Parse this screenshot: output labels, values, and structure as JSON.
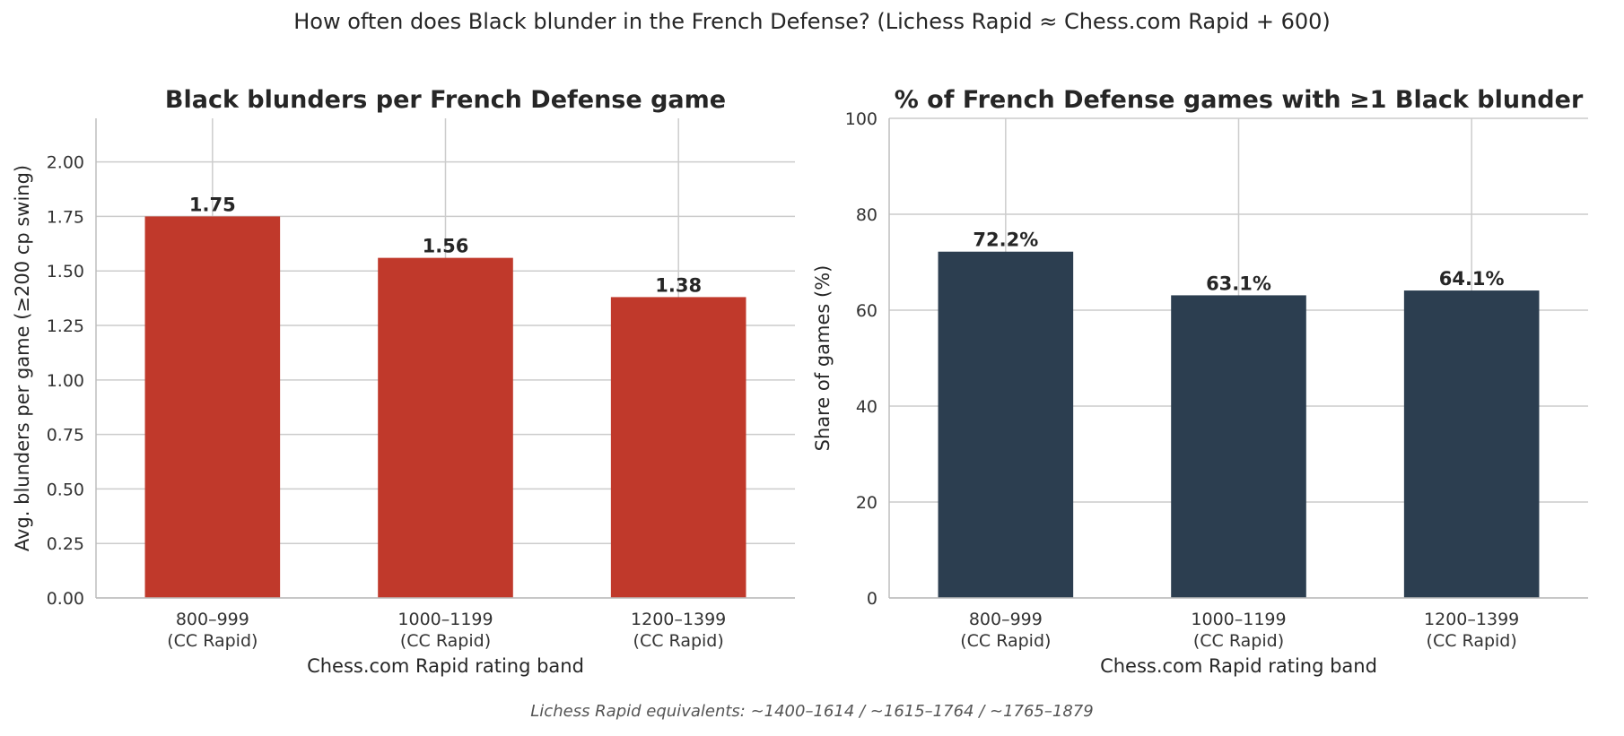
{
  "figure": {
    "suptitle": "How often does Black blunder in the French Defense?  (Lichess Rapid ≈ Chess.com Rapid + 600)",
    "footnote": "Lichess Rapid equivalents: ~1400–1614 / ~1615–1764 / ~1765–1879"
  },
  "chart_data": [
    {
      "type": "bar",
      "title": "Black blunders per French Defense game",
      "xlabel": "Chess.com Rapid rating band",
      "ylabel": "Avg. blunders per game (≥200 cp swing)",
      "categories": [
        [
          "800–999",
          "(CC Rapid)"
        ],
        [
          "1000–1199",
          "(CC Rapid)"
        ],
        [
          "1200–1399",
          "(CC Rapid)"
        ]
      ],
      "values": [
        1.75,
        1.56,
        1.38
      ],
      "data_labels": [
        "1.75",
        "1.56",
        "1.38"
      ],
      "ylim": [
        0,
        2.2
      ],
      "yticks": [
        0,
        0.25,
        0.5,
        0.75,
        1.0,
        1.25,
        1.5,
        1.75,
        2.0
      ],
      "ytick_labels": [
        "0.00",
        "0.25",
        "0.50",
        "0.75",
        "1.00",
        "1.25",
        "1.50",
        "1.75",
        "2.00"
      ],
      "color": "#c0392b",
      "grid": true
    },
    {
      "type": "bar",
      "title": "% of French Defense games with ≥1 Black blunder",
      "xlabel": "Chess.com Rapid rating band",
      "ylabel": "Share of games (%)",
      "categories": [
        [
          "800–999",
          "(CC Rapid)"
        ],
        [
          "1000–1199",
          "(CC Rapid)"
        ],
        [
          "1200–1399",
          "(CC Rapid)"
        ]
      ],
      "values": [
        72.2,
        63.1,
        64.1
      ],
      "data_labels": [
        "72.2%",
        "63.1%",
        "64.1%"
      ],
      "ylim": [
        0,
        100
      ],
      "yticks": [
        0,
        20,
        40,
        60,
        80,
        100
      ],
      "ytick_labels": [
        "0",
        "20",
        "40",
        "60",
        "80",
        "100"
      ],
      "color": "#2c3e50",
      "grid": true
    }
  ]
}
